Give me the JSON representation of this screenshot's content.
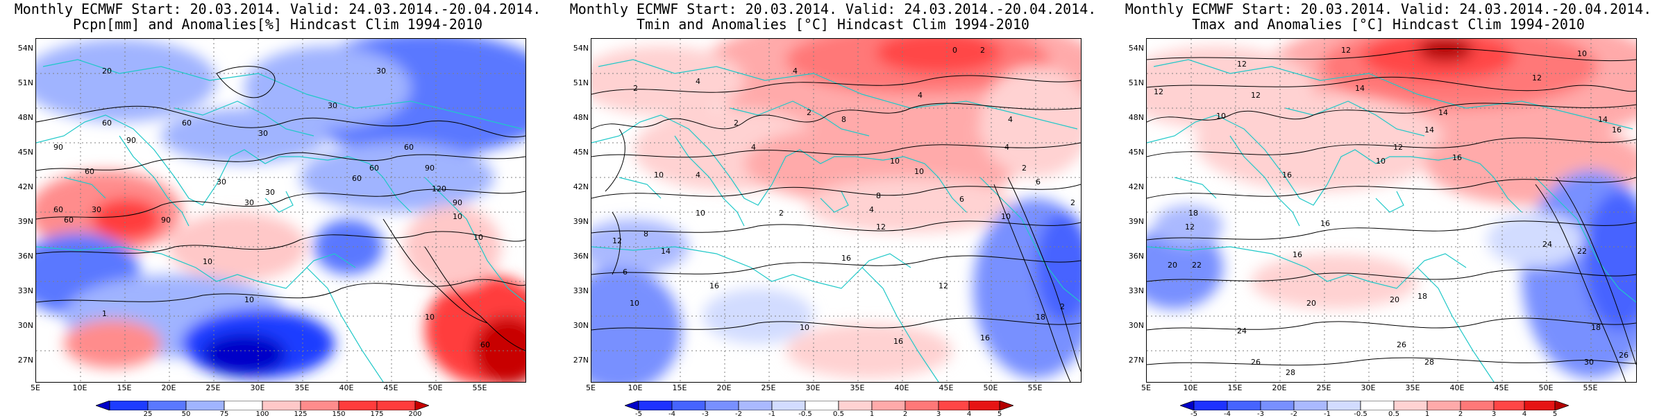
{
  "panels": [
    {
      "title_line1": "Monthly ECMWF Start: 20.03.2014. Valid: 24.03.2014.-20.04.2014.",
      "title_line2": "Pcpn[mm] and Anomalies[%] Hindcast Clim 1994-2010",
      "lat_labels": [
        "54N",
        "51N",
        "48N",
        "45N",
        "42N",
        "39N",
        "36N",
        "33N",
        "30N",
        "27N"
      ],
      "lon_labels": [
        "5E",
        "10E",
        "15E",
        "20E",
        "25E",
        "30E",
        "35E",
        "40E",
        "45E",
        "50E",
        "55E"
      ],
      "colorbar_ticks": [
        "25",
        "50",
        "75",
        "100",
        "125",
        "150",
        "175",
        "200"
      ],
      "colorbar_colors": [
        "#0000c8",
        "#1e3cff",
        "#5a78ff",
        "#a0b4ff",
        "#ffffff",
        "#ffc8c8",
        "#ff8c8c",
        "#ff3c3c",
        "#c80000"
      ],
      "contour_labels": [
        "20",
        "60",
        "30",
        "60",
        "90",
        "90",
        "60",
        "30",
        "60",
        "90",
        "60",
        "30",
        "120",
        "90",
        "30",
        "60",
        "90",
        "10",
        "10",
        "60",
        "30",
        "60",
        "1",
        "10",
        "60",
        "10",
        "10",
        "30",
        "30"
      ]
    },
    {
      "title_line1": "Monthly ECMWF Start: 20.03.2014. Valid: 24.03.2014.-20.04.2014.",
      "title_line2": "Tmin and Anomalies [°C] Hindcast Clim 1994-2010",
      "lat_labels": [
        "54N",
        "51N",
        "48N",
        "45N",
        "42N",
        "39N",
        "36N",
        "33N",
        "30N",
        "27N"
      ],
      "lon_labels": [
        "5E",
        "10E",
        "15E",
        "20E",
        "25E",
        "30E",
        "35E",
        "40E",
        "45E",
        "50E",
        "55E"
      ],
      "colorbar_ticks": [
        "-5",
        "-4",
        "-3",
        "-2",
        "-1",
        "-0.5",
        "0.5",
        "1",
        "2",
        "3",
        "4",
        "5"
      ],
      "colorbar_colors": [
        "#0000c8",
        "#1e32ff",
        "#4664ff",
        "#7890ff",
        "#aab9ff",
        "#d2dcff",
        "#ffffff",
        "#ffd2d2",
        "#ffaaaa",
        "#ff7878",
        "#ff4646",
        "#e61414",
        "#b40000"
      ],
      "contour_labels": [
        "0",
        "4",
        "4",
        "2",
        "2",
        "2",
        "4",
        "8",
        "4",
        "10",
        "6",
        "4",
        "10",
        "4",
        "10",
        "2",
        "6",
        "8",
        "2",
        "4",
        "12",
        "8",
        "16",
        "6",
        "10",
        "10",
        "14",
        "16",
        "10",
        "16",
        "12",
        "10",
        "2",
        "18",
        "16",
        "12",
        "4",
        "2",
        "2"
      ]
    },
    {
      "title_line1": "Monthly ECMWF Start: 20.03.2014. Valid: 24.03.2014.-20.04.2014.",
      "title_line2": "Tmax and Anomalies [°C] Hindcast Clim 1994-2010",
      "lat_labels": [
        "54N",
        "51N",
        "48N",
        "45N",
        "42N",
        "39N",
        "36N",
        "33N",
        "30N",
        "27N"
      ],
      "lon_labels": [
        "5E",
        "10E",
        "15E",
        "20E",
        "25E",
        "30E",
        "35E",
        "40E",
        "45E",
        "50E",
        "55E"
      ],
      "colorbar_ticks": [
        "-5",
        "-4",
        "-3",
        "-2",
        "-1",
        "-0.5",
        "0.5",
        "1",
        "2",
        "3",
        "4",
        "5"
      ],
      "colorbar_colors": [
        "#0000c8",
        "#1e32ff",
        "#4664ff",
        "#7890ff",
        "#aab9ff",
        "#d2dcff",
        "#ffffff",
        "#ffd2d2",
        "#ffaaaa",
        "#ff7878",
        "#ff4646",
        "#e61414",
        "#b40000"
      ],
      "contour_labels": [
        "12",
        "10",
        "12",
        "12",
        "12",
        "10",
        "14",
        "12",
        "14",
        "10",
        "16",
        "14",
        "12",
        "16",
        "14",
        "16",
        "18",
        "12",
        "16",
        "20",
        "22",
        "24",
        "26",
        "22",
        "18",
        "20",
        "24",
        "28",
        "28",
        "30",
        "26",
        "26",
        "20",
        "18",
        "16"
      ]
    }
  ]
}
